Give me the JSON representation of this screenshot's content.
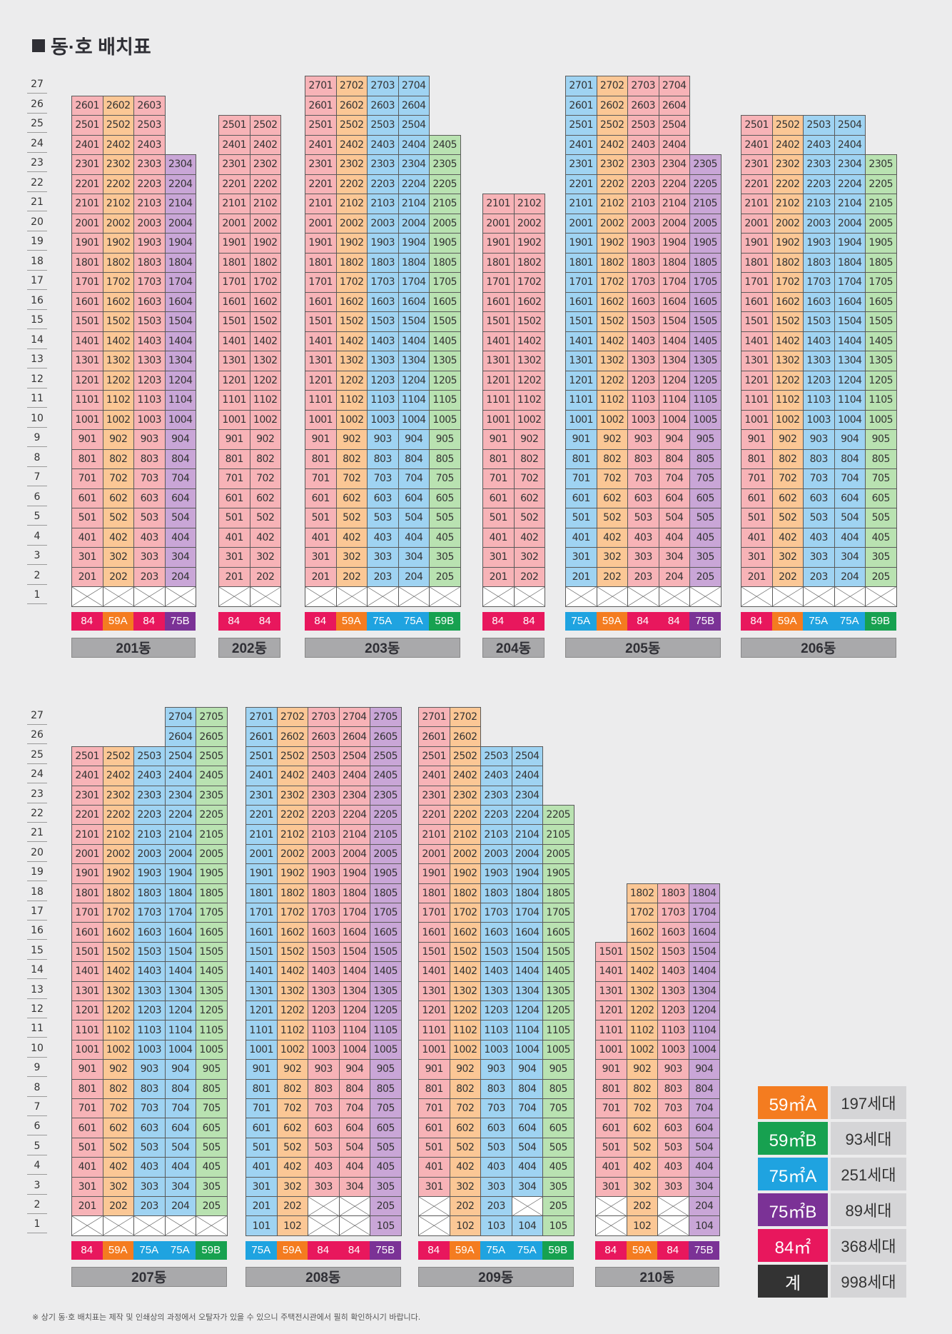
{
  "title": "동·호 배치표",
  "note": "※ 상기 동·호 배치표는 제작 및 인쇄상의 과정에서 오탈자가 있을 수 있으니 주택전시관에서 필히 확인하시기 바랍니다.",
  "colors": {
    "84": "#e8175d",
    "59A": "#f47c20",
    "75A": "#1fa3e0",
    "75B": "#7b3296",
    "59B": "#17a150",
    "total": "#333333"
  },
  "floor_numbers": [
    "27",
    "26",
    "25",
    "24",
    "23",
    "22",
    "21",
    "20",
    "19",
    "18",
    "17",
    "16",
    "15",
    "14",
    "13",
    "12",
    "11",
    "10",
    "9",
    "8",
    "7",
    "6",
    "5",
    "4",
    "3",
    "2",
    "1"
  ],
  "buildings": [
    {
      "name": "201동",
      "row": 0,
      "types": [
        "84",
        "59A",
        "84",
        "75B"
      ],
      "tops": [
        26,
        26,
        26,
        23
      ],
      "exclude": {
        "1": [
          1,
          2,
          3,
          4
        ]
      }
    },
    {
      "name": "202동",
      "row": 0,
      "types": [
        "84",
        "84"
      ],
      "tops": [
        25,
        25
      ],
      "exclude": {
        "1": [
          1,
          2
        ]
      }
    },
    {
      "name": "203동",
      "row": 0,
      "types": [
        "84",
        "59A",
        "75A",
        "75A",
        "59B"
      ],
      "tops": [
        27,
        27,
        27,
        27,
        24
      ],
      "exclude": {
        "1": [
          1,
          2,
          3,
          4,
          5
        ]
      }
    },
    {
      "name": "204동",
      "row": 0,
      "types": [
        "84",
        "84"
      ],
      "tops": [
        21,
        21
      ],
      "exclude": {
        "1": [
          1,
          2
        ]
      }
    },
    {
      "name": "205동",
      "row": 0,
      "types": [
        "75A",
        "59A",
        "84",
        "84",
        "75B"
      ],
      "tops": [
        27,
        27,
        27,
        27,
        23
      ],
      "exclude": {
        "1": [
          1,
          2,
          3,
          4,
          5
        ]
      }
    },
    {
      "name": "206동",
      "row": 0,
      "types": [
        "84",
        "59A",
        "75A",
        "75A",
        "59B"
      ],
      "tops": [
        25,
        25,
        25,
        25,
        23
      ],
      "exclude": {
        "1": [
          1,
          2,
          3,
          4,
          5
        ]
      }
    },
    {
      "name": "207동",
      "row": 1,
      "types": [
        "84",
        "59A",
        "75A",
        "75A",
        "59B"
      ],
      "tops": [
        25,
        25,
        25,
        27,
        27
      ],
      "exclude": {
        "1": [
          1,
          2,
          3,
          4,
          5
        ]
      }
    },
    {
      "name": "208동",
      "row": 1,
      "types": [
        "75A",
        "59A",
        "84",
        "84",
        "75B"
      ],
      "tops": [
        27,
        27,
        27,
        27,
        27
      ],
      "exclude": {
        "1": [
          3,
          4
        ],
        "2": [
          3,
          4
        ]
      }
    },
    {
      "name": "209동",
      "row": 1,
      "types": [
        "84",
        "59A",
        "75A",
        "75A",
        "59B"
      ],
      "tops": [
        27,
        27,
        25,
        25,
        22
      ],
      "exclude": {
        "1": [
          1
        ],
        "2": [
          1,
          4
        ]
      }
    },
    {
      "name": "210동",
      "row": 1,
      "types": [
        "84",
        "59A",
        "84",
        "75B"
      ],
      "tops": [
        15,
        18,
        18,
        18
      ],
      "exclude": {
        "1": [
          1,
          3
        ],
        "2": [
          1,
          3
        ]
      }
    }
  ],
  "legend": [
    {
      "type": "59㎡A",
      "count": "197세대",
      "key": "59A"
    },
    {
      "type": "59㎡B",
      "count": "93세대",
      "key": "59B"
    },
    {
      "type": "75㎡A",
      "count": "251세대",
      "key": "75A"
    },
    {
      "type": "75㎡B",
      "count": "89세대",
      "key": "75B"
    },
    {
      "type": "84㎡",
      "count": "368세대",
      "key": "84"
    },
    {
      "type": "계",
      "count": "998세대",
      "key": "total"
    }
  ]
}
